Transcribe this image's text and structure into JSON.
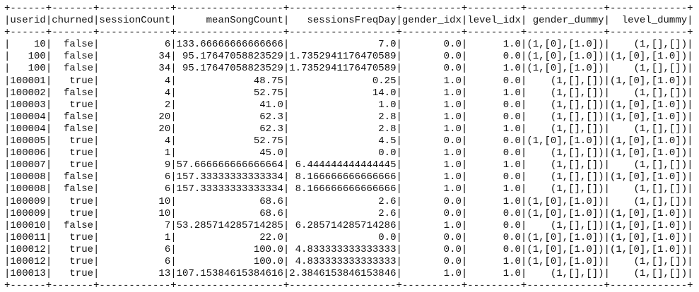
{
  "table": {
    "columns": [
      "userid",
      "churned",
      "sessionCount",
      "meanSongCount",
      "sessionsFreqDay",
      "gender_idx",
      "level_idx",
      "gender_dummy",
      "level_dummy"
    ],
    "rows": [
      [
        "10",
        "false",
        "6",
        "133.66666666666666",
        "7.0",
        "0.0",
        "1.0",
        "(1,[0],[1.0])",
        "(1,[],[])"
      ],
      [
        "100",
        "false",
        "34",
        "95.17647058823529",
        "1.7352941176470589",
        "0.0",
        "0.0",
        "(1,[0],[1.0])",
        "(1,[0],[1.0])"
      ],
      [
        "100",
        "false",
        "34",
        "95.17647058823529",
        "1.7352941176470589",
        "0.0",
        "1.0",
        "(1,[0],[1.0])",
        "(1,[],[])"
      ],
      [
        "100001",
        "true",
        "4",
        "48.75",
        "0.25",
        "1.0",
        "0.0",
        "(1,[],[])",
        "(1,[0],[1.0])"
      ],
      [
        "100002",
        "false",
        "4",
        "52.75",
        "14.0",
        "1.0",
        "1.0",
        "(1,[],[])",
        "(1,[],[])"
      ],
      [
        "100003",
        "true",
        "2",
        "41.0",
        "1.0",
        "1.0",
        "0.0",
        "(1,[],[])",
        "(1,[0],[1.0])"
      ],
      [
        "100004",
        "false",
        "20",
        "62.3",
        "2.8",
        "1.0",
        "0.0",
        "(1,[],[])",
        "(1,[0],[1.0])"
      ],
      [
        "100004",
        "false",
        "20",
        "62.3",
        "2.8",
        "1.0",
        "1.0",
        "(1,[],[])",
        "(1,[],[])"
      ],
      [
        "100005",
        "true",
        "4",
        "52.75",
        "4.5",
        "0.0",
        "0.0",
        "(1,[0],[1.0])",
        "(1,[0],[1.0])"
      ],
      [
        "100006",
        "true",
        "1",
        "45.0",
        "0.0",
        "1.0",
        "0.0",
        "(1,[],[])",
        "(1,[0],[1.0])"
      ],
      [
        "100007",
        "true",
        "9",
        "57.666666666666664",
        "6.444444444444445",
        "1.0",
        "1.0",
        "(1,[],[])",
        "(1,[],[])"
      ],
      [
        "100008",
        "false",
        "6",
        "157.33333333333334",
        "8.166666666666666",
        "1.0",
        "0.0",
        "(1,[],[])",
        "(1,[0],[1.0])"
      ],
      [
        "100008",
        "false",
        "6",
        "157.33333333333334",
        "8.166666666666666",
        "1.0",
        "1.0",
        "(1,[],[])",
        "(1,[],[])"
      ],
      [
        "100009",
        "true",
        "10",
        "68.6",
        "2.6",
        "0.0",
        "1.0",
        "(1,[0],[1.0])",
        "(1,[],[])"
      ],
      [
        "100009",
        "true",
        "10",
        "68.6",
        "2.6",
        "0.0",
        "0.0",
        "(1,[0],[1.0])",
        "(1,[0],[1.0])"
      ],
      [
        "100010",
        "false",
        "7",
        "53.285714285714285",
        "6.285714285714286",
        "1.0",
        "0.0",
        "(1,[],[])",
        "(1,[0],[1.0])"
      ],
      [
        "100011",
        "true",
        "1",
        "22.0",
        "0.0",
        "0.0",
        "0.0",
        "(1,[0],[1.0])",
        "(1,[0],[1.0])"
      ],
      [
        "100012",
        "true",
        "6",
        "100.0",
        "4.833333333333333",
        "0.0",
        "0.0",
        "(1,[0],[1.0])",
        "(1,[0],[1.0])"
      ],
      [
        "100012",
        "true",
        "6",
        "100.0",
        "4.833333333333333",
        "0.0",
        "1.0",
        "(1,[0],[1.0])",
        "(1,[],[])"
      ],
      [
        "100013",
        "true",
        "13",
        "107.15384615384616",
        "2.3846153846153846",
        "1.0",
        "1.0",
        "(1,[],[])",
        "(1,[],[])"
      ]
    ]
  }
}
